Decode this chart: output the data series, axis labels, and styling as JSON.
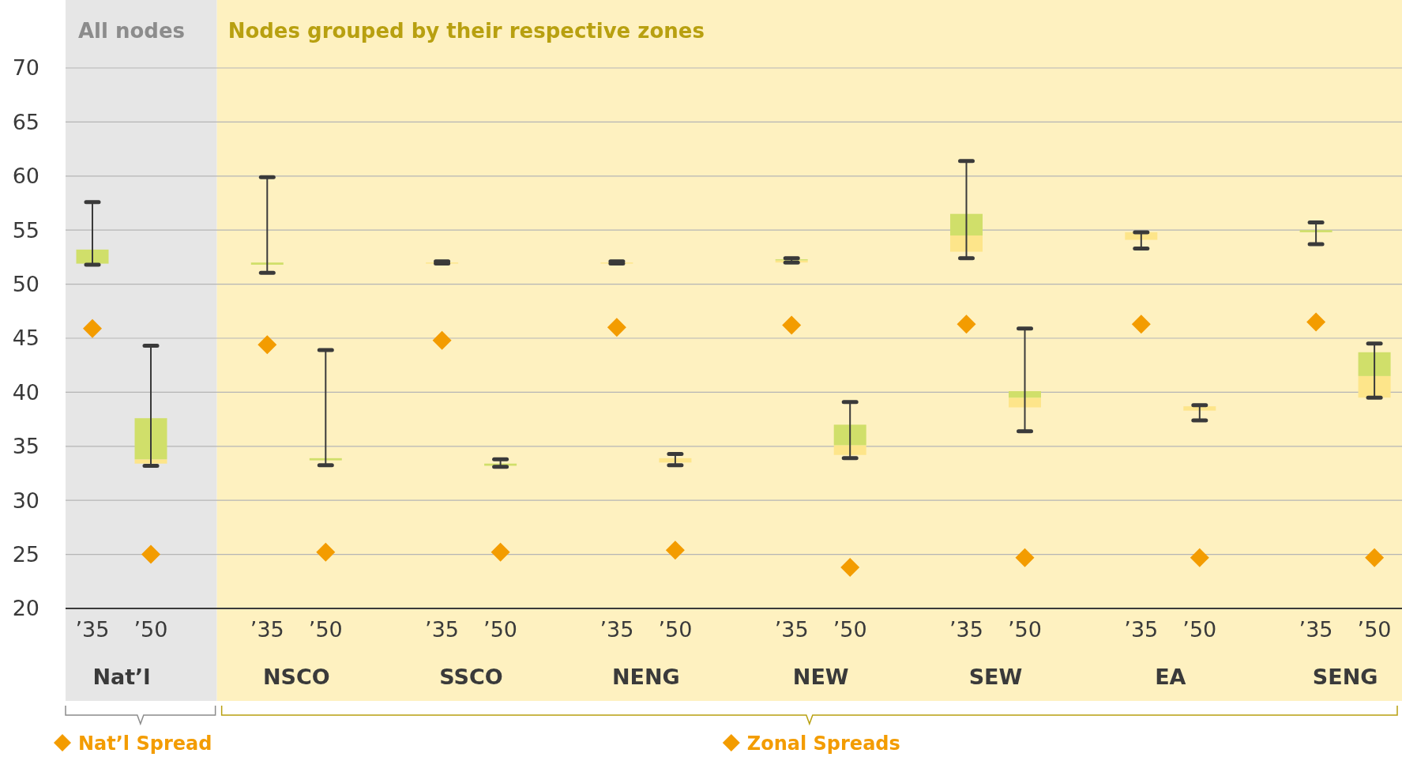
{
  "chart_data": {
    "type": "box",
    "categories": [
      "’35",
      "’50",
      "’35",
      "’50",
      "’35",
      "’50",
      "’35",
      "’50",
      "’35",
      "’50",
      "’35",
      "’50",
      "’35",
      "’50",
      "’35",
      "’50"
    ],
    "ylim": [
      20,
      70
    ],
    "yticks": [
      20,
      25,
      30,
      35,
      40,
      45,
      50,
      55,
      60,
      65,
      70
    ],
    "grid": "y",
    "legend": "bottom",
    "marker": "diamond",
    "annotations": [
      "All nodes",
      "Nodes grouped by their respective zones",
      "Nat’l",
      "NSCO",
      "SSCO",
      "NENG",
      "NEW",
      "SEW",
      "EA",
      "SENG"
    ],
    "series": [
      {
        "color": "#d0df6a",
        "colors": [
          "#d0df6a",
          "#fde58a",
          "#d0df6a",
          "#d0df6a",
          "#fde58a",
          "#d0df6a",
          "#fde58a",
          "#fde58a",
          "#fde58a",
          "#fde58a",
          "#fde58a",
          "#fde58a",
          "#fde58a",
          "#fde58a",
          "#d0df6a",
          "#fde58a"
        ],
        "boxes": [
          {
            "low": 51.8,
            "q1": 51.9,
            "median": 51.9,
            "q3": 53.2,
            "high": 57.6
          },
          {
            "low": 33.2,
            "q1": 33.4,
            "median": 33.8,
            "q3": 37.6,
            "high": 44.3
          },
          {
            "low": 51.05,
            "q1": 51.8,
            "median": 51.8,
            "q3": 52.0,
            "high": 59.9
          },
          {
            "low": 33.25,
            "q1": 33.7,
            "median": 33.7,
            "q3": 33.9,
            "high": 43.9
          },
          {
            "low": 51.9,
            "q1": 51.9,
            "median": 52.0,
            "q3": 52.0,
            "high": 52.1
          },
          {
            "low": 33.1,
            "q1": 33.2,
            "median": 33.2,
            "q3": 33.4,
            "high": 33.8
          },
          {
            "low": 51.9,
            "q1": 51.9,
            "median": 52.0,
            "q3": 52.0,
            "high": 52.1
          },
          {
            "low": 33.25,
            "q1": 33.5,
            "median": 33.9,
            "q3": 33.9,
            "high": 34.3
          },
          {
            "low": 52.0,
            "q1": 52.0,
            "median": 52.2,
            "q3": 52.3,
            "high": 52.4
          },
          {
            "low": 33.9,
            "q1": 34.2,
            "median": 35.1,
            "q3": 37.0,
            "high": 39.1
          },
          {
            "low": 52.4,
            "q1": 53.0,
            "median": 54.5,
            "q3": 56.5,
            "high": 61.4
          },
          {
            "low": 36.4,
            "q1": 38.6,
            "median": 39.5,
            "q3": 40.1,
            "high": 45.9
          },
          {
            "low": 53.3,
            "q1": 54.1,
            "median": 54.8,
            "q3": 54.8,
            "high": 54.8
          },
          {
            "low": 37.4,
            "q1": 38.3,
            "median": 38.7,
            "q3": 38.7,
            "high": 38.8
          },
          {
            "low": 53.7,
            "q1": 54.8,
            "median": 54.8,
            "q3": 55.0,
            "high": 55.7
          },
          {
            "low": 39.5,
            "q1": 39.5,
            "median": 41.5,
            "q3": 43.7,
            "high": 44.5
          }
        ]
      },
      {
        "type": "scatter",
        "name": "Nat’l Spread",
        "color": "#f39c00",
        "values": [
          45.9,
          25.0,
          null,
          null,
          null,
          null,
          null,
          null,
          null,
          null,
          null,
          null,
          null,
          null,
          null,
          null
        ]
      },
      {
        "type": "scatter",
        "name": "Zonal Spreads",
        "color": "#f39c00",
        "values": [
          null,
          null,
          44.4,
          25.2,
          44.8,
          25.2,
          46.0,
          25.4,
          46.2,
          23.8,
          46.3,
          24.7,
          46.3,
          24.7,
          46.5,
          24.7
        ]
      }
    ]
  }
}
